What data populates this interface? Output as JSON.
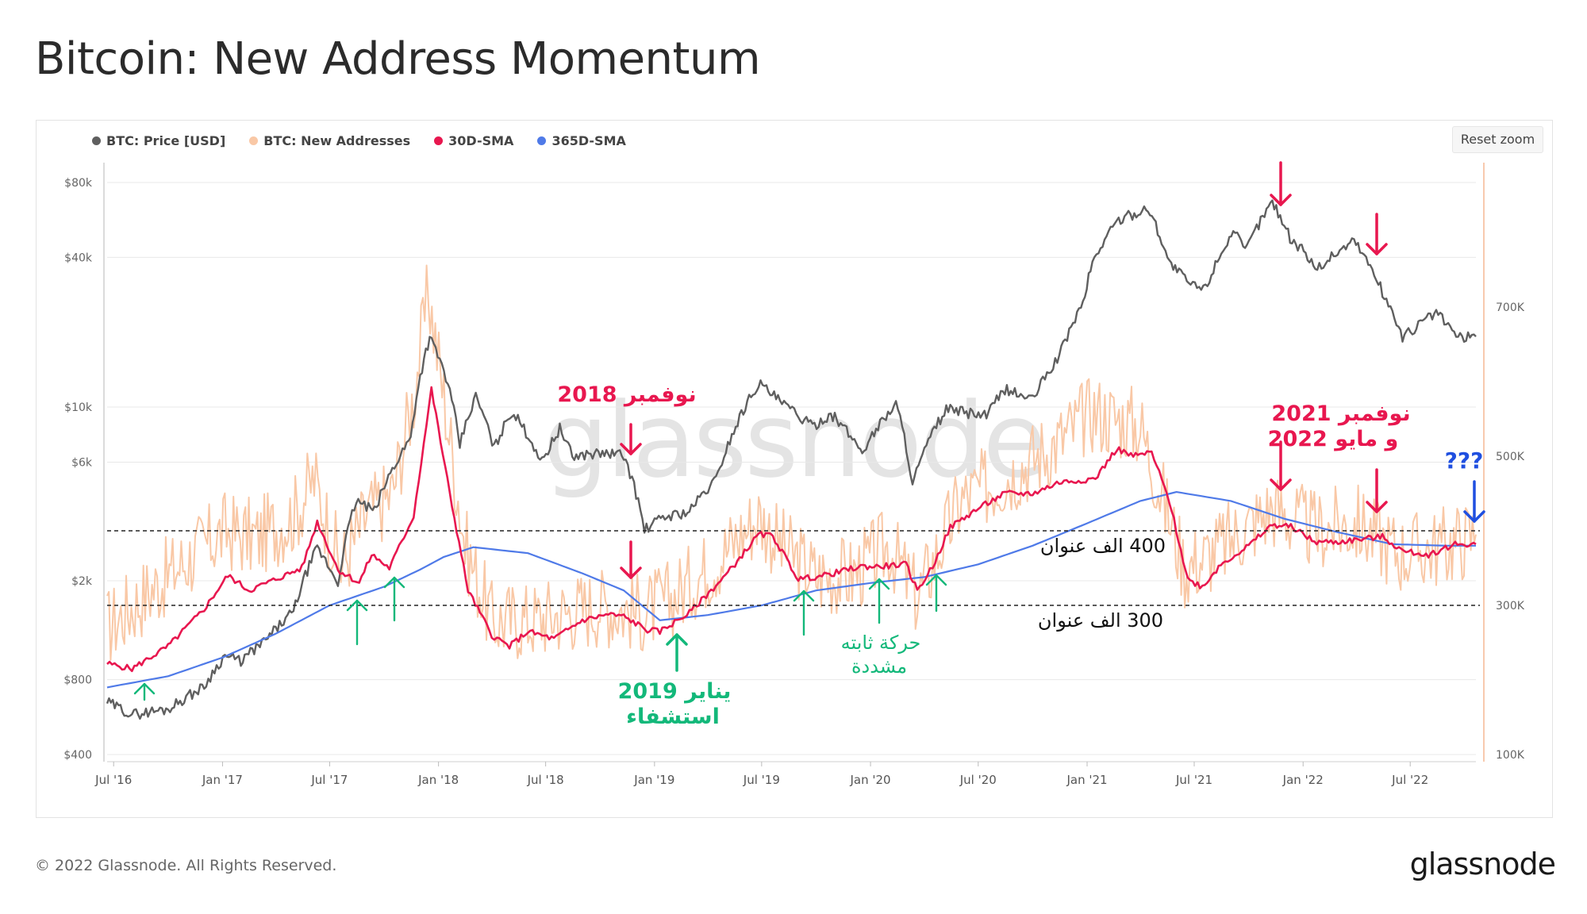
{
  "page": {
    "title": "Bitcoin: New Address Momentum",
    "copyright": "© 2022 Glassnode. All Rights Reserved.",
    "logo": "glassnode",
    "reset_zoom": "Reset zoom",
    "watermark": "glassnode"
  },
  "legend": [
    {
      "label": "BTC: Price [USD]",
      "color": "#5f5f5f"
    },
    {
      "label": "BTC: New Addresses",
      "color": "#f9c8a6"
    },
    {
      "label": "30D-SMA",
      "color": "#e8174f"
    },
    {
      "label": "365D-SMA",
      "color": "#4f7ae8"
    }
  ],
  "chart_data": {
    "type": "line",
    "title": "Bitcoin: New Address Momentum",
    "x_ticks": [
      "Jul '16",
      "Jan '17",
      "Jul '17",
      "Jan '18",
      "Jul '18",
      "Jan '19",
      "Jul '19",
      "Jan '20",
      "Jul '20",
      "Jan '21",
      "Jul '21",
      "Jan '22",
      "Jul '22"
    ],
    "y_left": {
      "label": "",
      "scale": "log",
      "ticks": [
        "$400",
        "$800",
        "$2k",
        "$6k",
        "$10k",
        "$40k",
        "$80k"
      ],
      "tick_values": [
        400,
        800,
        2000,
        6000,
        10000,
        40000,
        80000
      ]
    },
    "y_right": {
      "label": "",
      "scale": "linear",
      "ticks": [
        "100K",
        "300K",
        "500K",
        "700K"
      ],
      "tick_values": [
        100000,
        300000,
        500000,
        700000
      ]
    },
    "series": [
      {
        "name": "BTC: Price [USD]",
        "axis": "left",
        "color": "#5f5f5f",
        "points": [
          [
            "2016-06-20",
            650
          ],
          [
            "2016-08-01",
            580
          ],
          [
            "2016-10-01",
            610
          ],
          [
            "2016-12-01",
            750
          ],
          [
            "2017-01-05",
            1000
          ],
          [
            "2017-02-01",
            950
          ],
          [
            "2017-03-15",
            1150
          ],
          [
            "2017-05-01",
            1500
          ],
          [
            "2017-06-10",
            2700
          ],
          [
            "2017-07-15",
            1950
          ],
          [
            "2017-08-15",
            4200
          ],
          [
            "2017-09-15",
            3800
          ],
          [
            "2017-10-15",
            5600
          ],
          [
            "2017-11-15",
            7500
          ],
          [
            "2017-12-17",
            19000
          ],
          [
            "2018-01-10",
            14000
          ],
          [
            "2018-02-06",
            7000
          ],
          [
            "2018-03-05",
            11000
          ],
          [
            "2018-04-05",
            6800
          ],
          [
            "2018-05-05",
            9600
          ],
          [
            "2018-06-25",
            6000
          ],
          [
            "2018-07-25",
            8200
          ],
          [
            "2018-08-15",
            6300
          ],
          [
            "2018-09-15",
            6500
          ],
          [
            "2018-10-15",
            6500
          ],
          [
            "2018-11-10",
            6400
          ],
          [
            "2018-12-15",
            3200
          ],
          [
            "2019-01-15",
            3600
          ],
          [
            "2019-03-01",
            3800
          ],
          [
            "2019-04-15",
            5100
          ],
          [
            "2019-05-15",
            8000
          ],
          [
            "2019-06-26",
            12500
          ],
          [
            "2019-08-01",
            10500
          ],
          [
            "2019-09-25",
            8300
          ],
          [
            "2019-10-26",
            9400
          ],
          [
            "2019-12-18",
            6600
          ],
          [
            "2020-02-13",
            10300
          ],
          [
            "2020-03-12",
            4900
          ],
          [
            "2020-05-08",
            9800
          ],
          [
            "2020-07-15",
            9200
          ],
          [
            "2020-08-15",
            11800
          ],
          [
            "2020-10-01",
            10700
          ],
          [
            "2020-11-15",
            16000
          ],
          [
            "2020-12-25",
            26000
          ],
          [
            "2021-01-10",
            38000
          ],
          [
            "2021-02-20",
            56000
          ],
          [
            "2021-04-14",
            63000
          ],
          [
            "2021-05-20",
            38000
          ],
          [
            "2021-06-25",
            31000
          ],
          [
            "2021-07-20",
            30000
          ],
          [
            "2021-09-05",
            51000
          ],
          [
            "2021-09-25",
            42000
          ],
          [
            "2021-11-10",
            67000
          ],
          [
            "2021-12-10",
            48000
          ],
          [
            "2022-01-25",
            36000
          ],
          [
            "2022-03-28",
            47000
          ],
          [
            "2022-05-15",
            29000
          ],
          [
            "2022-06-18",
            19000
          ],
          [
            "2022-08-14",
            24000
          ],
          [
            "2022-09-20",
            19000
          ],
          [
            "2022-10-20",
            19200
          ]
        ]
      },
      {
        "name": "BTC: New Addresses",
        "axis": "right",
        "color": "#f9c8a6",
        "points": [
          [
            "2016-06-20",
            270000
          ],
          [
            "2016-09-01",
            320000
          ],
          [
            "2016-11-01",
            360000
          ],
          [
            "2017-01-05",
            400000
          ],
          [
            "2017-03-01",
            390000
          ],
          [
            "2017-05-01",
            420000
          ],
          [
            "2017-06-05",
            470000
          ],
          [
            "2017-07-20",
            350000
          ],
          [
            "2017-09-01",
            420000
          ],
          [
            "2017-10-15",
            450000
          ],
          [
            "2017-11-20",
            580000
          ],
          [
            "2017-12-15",
            720000
          ],
          [
            "2018-01-10",
            580000
          ],
          [
            "2018-02-15",
            380000
          ],
          [
            "2018-04-01",
            280000
          ],
          [
            "2018-06-01",
            280000
          ],
          [
            "2018-08-01",
            290000
          ],
          [
            "2018-10-01",
            300000
          ],
          [
            "2018-12-15",
            290000
          ],
          [
            "2019-02-01",
            310000
          ],
          [
            "2019-04-15",
            360000
          ],
          [
            "2019-06-26",
            420000
          ],
          [
            "2019-08-01",
            380000
          ],
          [
            "2019-10-01",
            340000
          ],
          [
            "2019-12-01",
            340000
          ],
          [
            "2020-02-01",
            380000
          ],
          [
            "2020-03-20",
            310000
          ],
          [
            "2020-06-01",
            440000
          ],
          [
            "2020-09-01",
            480000
          ],
          [
            "2020-11-15",
            520000
          ],
          [
            "2021-01-10",
            560000
          ],
          [
            "2021-04-01",
            540000
          ],
          [
            "2021-06-15",
            350000
          ],
          [
            "2021-08-01",
            370000
          ],
          [
            "2021-11-10",
            430000
          ],
          [
            "2022-01-20",
            400000
          ],
          [
            "2022-04-01",
            410000
          ],
          [
            "2022-06-15",
            370000
          ],
          [
            "2022-09-01",
            380000
          ],
          [
            "2022-10-20",
            395000
          ]
        ]
      },
      {
        "name": "30D-SMA",
        "axis": "right",
        "color": "#e8174f",
        "points": [
          [
            "2016-06-20",
            222000
          ],
          [
            "2016-08-01",
            215000
          ],
          [
            "2016-10-01",
            245000
          ],
          [
            "2016-12-01",
            295000
          ],
          [
            "2017-01-10",
            340000
          ],
          [
            "2017-02-15",
            320000
          ],
          [
            "2017-04-01",
            335000
          ],
          [
            "2017-05-15",
            350000
          ],
          [
            "2017-06-10",
            412000
          ],
          [
            "2017-07-15",
            348000
          ],
          [
            "2017-08-20",
            330000
          ],
          [
            "2017-09-10",
            368000
          ],
          [
            "2017-10-10",
            350000
          ],
          [
            "2017-11-20",
            420000
          ],
          [
            "2017-12-20",
            590000
          ],
          [
            "2018-01-20",
            450000
          ],
          [
            "2018-02-20",
            320000
          ],
          [
            "2018-04-01",
            260000
          ],
          [
            "2018-05-01",
            245000
          ],
          [
            "2018-06-01",
            265000
          ],
          [
            "2018-07-15",
            255000
          ],
          [
            "2018-09-01",
            280000
          ],
          [
            "2018-10-15",
            288000
          ],
          [
            "2018-11-10",
            285000
          ],
          [
            "2018-12-20",
            267000
          ],
          [
            "2019-01-10",
            265000
          ],
          [
            "2019-03-01",
            290000
          ],
          [
            "2019-05-01",
            340000
          ],
          [
            "2019-06-26",
            395000
          ],
          [
            "2019-07-20",
            393000
          ],
          [
            "2019-09-01",
            335000
          ],
          [
            "2019-10-15",
            340000
          ],
          [
            "2019-12-15",
            352000
          ],
          [
            "2020-01-15",
            352000
          ],
          [
            "2020-03-01",
            355000
          ],
          [
            "2020-03-20",
            320000
          ],
          [
            "2020-04-15",
            352000
          ],
          [
            "2020-05-15",
            405000
          ],
          [
            "2020-07-01",
            430000
          ],
          [
            "2020-08-15",
            450000
          ],
          [
            "2020-10-01",
            450000
          ],
          [
            "2020-11-15",
            465000
          ],
          [
            "2021-01-15",
            470000
          ],
          [
            "2021-02-20",
            510000
          ],
          [
            "2021-03-20",
            500000
          ],
          [
            "2021-04-20",
            505000
          ],
          [
            "2021-05-20",
            440000
          ],
          [
            "2021-06-20",
            335000
          ],
          [
            "2021-07-15",
            325000
          ],
          [
            "2021-08-15",
            355000
          ],
          [
            "2021-10-01",
            380000
          ],
          [
            "2021-11-10",
            408000
          ],
          [
            "2021-12-15",
            405000
          ],
          [
            "2022-01-20",
            385000
          ],
          [
            "2022-03-01",
            385000
          ],
          [
            "2022-05-15",
            392000
          ],
          [
            "2022-06-20",
            372000
          ],
          [
            "2022-08-01",
            368000
          ],
          [
            "2022-09-15",
            382000
          ],
          [
            "2022-10-20",
            382000
          ]
        ]
      },
      {
        "name": "365D-SMA",
        "axis": "right",
        "color": "#4f7ae8",
        "points": [
          [
            "2016-06-20",
            190000
          ],
          [
            "2016-10-01",
            205000
          ],
          [
            "2017-01-01",
            230000
          ],
          [
            "2017-04-01",
            262000
          ],
          [
            "2017-07-01",
            300000
          ],
          [
            "2017-10-01",
            325000
          ],
          [
            "2017-12-01",
            348000
          ],
          [
            "2018-01-10",
            365000
          ],
          [
            "2018-03-01",
            378000
          ],
          [
            "2018-06-01",
            370000
          ],
          [
            "2018-09-01",
            343000
          ],
          [
            "2018-11-10",
            320000
          ],
          [
            "2019-01-10",
            280000
          ],
          [
            "2019-04-01",
            287000
          ],
          [
            "2019-07-01",
            300000
          ],
          [
            "2019-10-01",
            320000
          ],
          [
            "2020-01-01",
            330000
          ],
          [
            "2020-04-01",
            338000
          ],
          [
            "2020-07-01",
            355000
          ],
          [
            "2020-10-01",
            380000
          ],
          [
            "2021-01-01",
            410000
          ],
          [
            "2021-04-01",
            440000
          ],
          [
            "2021-06-01",
            452000
          ],
          [
            "2021-09-01",
            440000
          ],
          [
            "2021-12-01",
            416000
          ],
          [
            "2022-03-01",
            398000
          ],
          [
            "2022-06-01",
            382000
          ],
          [
            "2022-09-01",
            380000
          ],
          [
            "2022-10-20",
            380000
          ]
        ]
      }
    ],
    "reference_lines": [
      {
        "axis": "right",
        "value": 400000,
        "style": "dashed",
        "label": "400 الف عنوان"
      },
      {
        "axis": "right",
        "value": 300000,
        "style": "dashed",
        "label": "300 الف عنوان"
      }
    ],
    "annotations": [
      {
        "text": "نوفمبر 2018",
        "color": "#e8174f"
      },
      {
        "text": "نوفمبر 2021",
        "color": "#e8174f"
      },
      {
        "text": "و مايو 2022",
        "color": "#e8174f"
      },
      {
        "text": "???",
        "color": "#1f4fe0"
      },
      {
        "text": "يناير 2019",
        "color": "#13b87a"
      },
      {
        "text": "استشفاء",
        "color": "#13b87a"
      },
      {
        "text": "حركة ثابته",
        "color": "#13b87a"
      },
      {
        "text": "مشددة",
        "color": "#13b87a"
      }
    ]
  }
}
